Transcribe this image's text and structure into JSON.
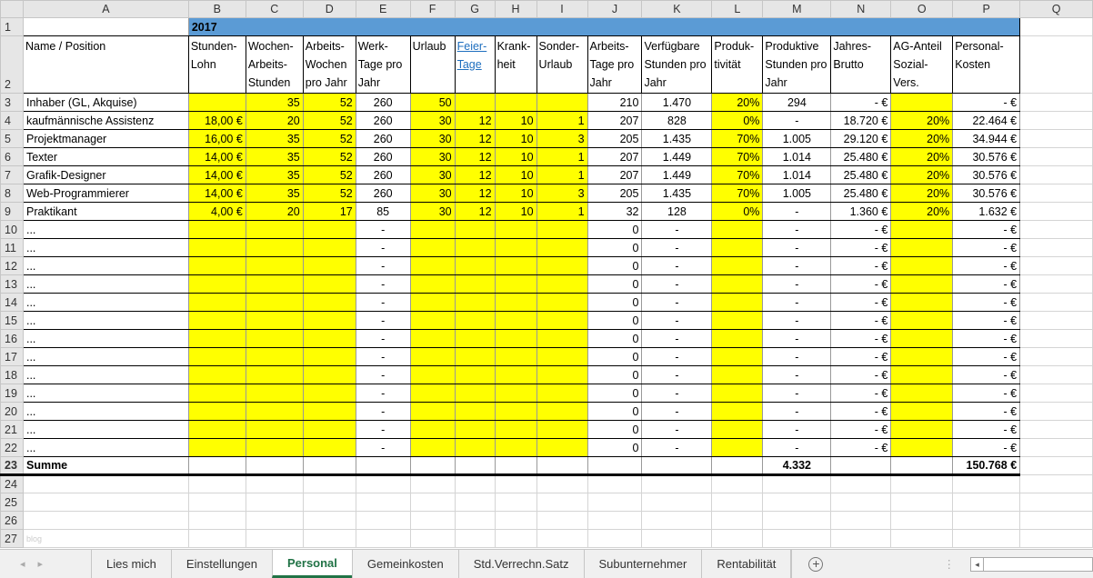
{
  "columns": [
    "A",
    "B",
    "C",
    "D",
    "E",
    "F",
    "G",
    "H",
    "I",
    "J",
    "K",
    "L",
    "M",
    "N",
    "O",
    "P",
    "Q"
  ],
  "year": "2017",
  "headers": [
    "Name / Position",
    "Stunden-Lohn",
    "Wochen-Arbeits-Stunden",
    "Arbeits-Wochen pro Jahr",
    "Werk-Tage pro Jahr",
    "Urlaub",
    "Feier-Tage",
    "Krank-heit",
    "Sonder-Urlaub",
    "Arbeits-Tage pro Jahr",
    "Verfügbare Stunden pro Jahr",
    "Produk-tivität",
    "Produktive Stunden pro Jahr",
    "Jahres-Brutto",
    "AG-Anteil Sozial-Vers.",
    "Personal-Kosten"
  ],
  "rows": [
    [
      "Inhaber (GL, Akquise)",
      "",
      "35",
      "52",
      "260",
      "50",
      "",
      "",
      "",
      "210",
      "1.470",
      "20%",
      "294",
      "-   €",
      "",
      "-   €"
    ],
    [
      "kaufmännische Assistenz",
      "18,00 €",
      "20",
      "52",
      "260",
      "30",
      "12",
      "10",
      "1",
      "207",
      "828",
      "0%",
      "-",
      "18.720 €",
      "20%",
      "22.464 €"
    ],
    [
      "Projektmanager",
      "16,00 €",
      "35",
      "52",
      "260",
      "30",
      "12",
      "10",
      "3",
      "205",
      "1.435",
      "70%",
      "1.005",
      "29.120 €",
      "20%",
      "34.944 €"
    ],
    [
      "Texter",
      "14,00 €",
      "35",
      "52",
      "260",
      "30",
      "12",
      "10",
      "1",
      "207",
      "1.449",
      "70%",
      "1.014",
      "25.480 €",
      "20%",
      "30.576 €"
    ],
    [
      "Grafik-Designer",
      "14,00 €",
      "35",
      "52",
      "260",
      "30",
      "12",
      "10",
      "1",
      "207",
      "1.449",
      "70%",
      "1.014",
      "25.480 €",
      "20%",
      "30.576 €"
    ],
    [
      "Web-Programmierer",
      "14,00 €",
      "35",
      "52",
      "260",
      "30",
      "12",
      "10",
      "3",
      "205",
      "1.435",
      "70%",
      "1.005",
      "25.480 €",
      "20%",
      "30.576 €"
    ],
    [
      "Praktikant",
      "4,00 €",
      "20",
      "17",
      "85",
      "30",
      "12",
      "10",
      "1",
      "32",
      "128",
      "0%",
      "-",
      "1.360 €",
      "20%",
      "1.632 €"
    ],
    [
      "...",
      "",
      "",
      "",
      "-",
      "",
      "",
      "",
      "",
      "0",
      "-",
      "",
      "-",
      "-   €",
      "",
      "-   €"
    ],
    [
      "...",
      "",
      "",
      "",
      "-",
      "",
      "",
      "",
      "",
      "0",
      "-",
      "",
      "-",
      "-   €",
      "",
      "-   €"
    ],
    [
      "...",
      "",
      "",
      "",
      "-",
      "",
      "",
      "",
      "",
      "0",
      "-",
      "",
      "-",
      "-   €",
      "",
      "-   €"
    ],
    [
      "...",
      "",
      "",
      "",
      "-",
      "",
      "",
      "",
      "",
      "0",
      "-",
      "",
      "-",
      "-   €",
      "",
      "-   €"
    ],
    [
      "...",
      "",
      "",
      "",
      "-",
      "",
      "",
      "",
      "",
      "0",
      "-",
      "",
      "-",
      "-   €",
      "",
      "-   €"
    ],
    [
      "...",
      "",
      "",
      "",
      "-",
      "",
      "",
      "",
      "",
      "0",
      "-",
      "",
      "-",
      "-   €",
      "",
      "-   €"
    ],
    [
      "...",
      "",
      "",
      "",
      "-",
      "",
      "",
      "",
      "",
      "0",
      "-",
      "",
      "-",
      "-   €",
      "",
      "-   €"
    ],
    [
      "...",
      "",
      "",
      "",
      "-",
      "",
      "",
      "",
      "",
      "0",
      "-",
      "",
      "-",
      "-   €",
      "",
      "-   €"
    ],
    [
      "...",
      "",
      "",
      "",
      "-",
      "",
      "",
      "",
      "",
      "0",
      "-",
      "",
      "-",
      "-   €",
      "",
      "-   €"
    ],
    [
      "...",
      "",
      "",
      "",
      "-",
      "",
      "",
      "",
      "",
      "0",
      "-",
      "",
      "-",
      "-   €",
      "",
      "-   €"
    ],
    [
      "...",
      "",
      "",
      "",
      "-",
      "",
      "",
      "",
      "",
      "0",
      "-",
      "",
      "-",
      "-   €",
      "",
      "-   €"
    ],
    [
      "...",
      "",
      "",
      "",
      "-",
      "",
      "",
      "",
      "",
      "0",
      "-",
      "",
      "-",
      "-   €",
      "",
      "-   €"
    ],
    [
      "...",
      "",
      "",
      "",
      "-",
      "",
      "",
      "",
      "",
      "0",
      "-",
      "",
      "-",
      "-   €",
      "",
      "-   €"
    ]
  ],
  "summe": [
    "Summe",
    "",
    "",
    "",
    "",
    "",
    "",
    "",
    "",
    "",
    "",
    "",
    "4.332",
    "",
    "",
    "150.768 €"
  ],
  "watermark": "blog",
  "tabs": [
    "Lies mich",
    "Einstellungen",
    "Personal",
    "Gemeinkosten",
    "Std.Verrechn.Satz",
    "Subunternehmer",
    "Rentabilität"
  ],
  "active_tab": "Personal",
  "colors": {
    "highlight": "#ffff00",
    "header_band": "#5b9bd5",
    "active_tab": "#217346"
  }
}
